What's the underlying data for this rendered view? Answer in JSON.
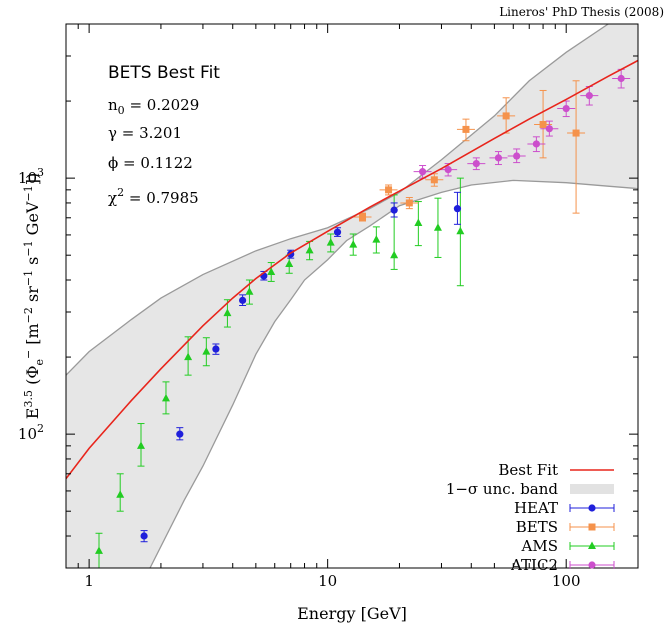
{
  "credit": "Lineros' PhD Thesis (2008)",
  "chart_data": {
    "type": "scatter",
    "xscale": "log",
    "yscale": "log",
    "xlim": [
      0.8,
      200
    ],
    "ylim": [
      30,
      4000
    ],
    "xlabel": "Energy [GeV]",
    "ylabel": {
      "base": "E",
      "exp": "3.5",
      "phi_open": " (Φ",
      "phi_sub": "e",
      "phi_sup": "−",
      "bracket": " [m",
      "u1": "−2",
      "sr": " sr",
      "u2": "−1",
      "s": " s",
      "u3": "−1",
      "gev": " GeV",
      "u4": "−1",
      "close": "])"
    },
    "x_tick_labels": [
      {
        "value": 1,
        "label": "1"
      },
      {
        "value": 10,
        "label": "10"
      },
      {
        "value": 100,
        "label": "100"
      }
    ],
    "y_tick_labels": [
      {
        "value": 100,
        "label": "10",
        "exp": "2"
      },
      {
        "value": 1000,
        "label": "10",
        "exp": "3"
      }
    ],
    "grid": false,
    "legend_position": "bottom-right",
    "annotation": {
      "title": "BETS Best Fit",
      "n0_name": "n",
      "n0_sub": "0",
      "n0_value": " = 0.2029",
      "gamma": "γ = 3.201",
      "phi": "ϕ = 0.1122",
      "chi_name": "χ",
      "chi_sup": "2",
      "chi_value": " = 0.7985"
    },
    "fit": {
      "name": "Best Fit",
      "color": "#e8251c",
      "points": [
        [
          0.8,
          67
        ],
        [
          1,
          88
        ],
        [
          1.5,
          135
        ],
        [
          2,
          180
        ],
        [
          3,
          265
        ],
        [
          4,
          340
        ],
        [
          5,
          405
        ],
        [
          7,
          510
        ],
        [
          10,
          620
        ],
        [
          15,
          770
        ],
        [
          20,
          890
        ],
        [
          30,
          1090
        ],
        [
          50,
          1430
        ],
        [
          70,
          1700
        ],
        [
          100,
          2030
        ],
        [
          150,
          2500
        ],
        [
          200,
          2880
        ]
      ]
    },
    "band": {
      "name": "1−σ unc. band",
      "color": "#e6e6e6",
      "upper": [
        [
          0.8,
          170
        ],
        [
          1,
          210
        ],
        [
          1.5,
          280
        ],
        [
          2,
          340
        ],
        [
          3,
          420
        ],
        [
          5,
          520
        ],
        [
          7,
          580
        ],
        [
          10,
          640
        ],
        [
          15,
          760
        ],
        [
          20,
          880
        ],
        [
          30,
          1180
        ],
        [
          50,
          1750
        ],
        [
          70,
          2400
        ],
        [
          100,
          3100
        ],
        [
          150,
          4000
        ]
      ],
      "lower": [
        [
          1.8,
          30
        ],
        [
          2.5,
          55
        ],
        [
          3,
          75
        ],
        [
          4,
          130
        ],
        [
          5,
          205
        ],
        [
          6,
          275
        ],
        [
          7,
          335
        ],
        [
          8,
          400
        ],
        [
          10,
          480
        ],
        [
          12,
          570
        ],
        [
          15,
          650
        ],
        [
          20,
          780
        ],
        [
          30,
          880
        ],
        [
          40,
          940
        ],
        [
          60,
          980
        ],
        [
          100,
          960
        ],
        [
          150,
          930
        ],
        [
          200,
          910
        ]
      ]
    },
    "series": [
      {
        "name": "HEAT",
        "color": "#1f1fdb",
        "marker": "circle",
        "points": [
          {
            "x": 1.7,
            "y": 40,
            "lo": 38,
            "hi": 42
          },
          {
            "x": 2.4,
            "y": 100,
            "lo": 95,
            "hi": 106
          },
          {
            "x": 3.4,
            "y": 215,
            "lo": 205,
            "hi": 225
          },
          {
            "x": 4.4,
            "y": 333,
            "lo": 318,
            "hi": 350
          },
          {
            "x": 5.4,
            "y": 415,
            "lo": 400,
            "hi": 432
          },
          {
            "x": 7.0,
            "y": 505,
            "lo": 487,
            "hi": 523
          },
          {
            "x": 11,
            "y": 615,
            "lo": 592,
            "hi": 640
          },
          {
            "x": 19,
            "y": 750,
            "lo": 705,
            "hi": 800
          },
          {
            "x": 35,
            "y": 760,
            "lo": 660,
            "hi": 880
          }
        ]
      },
      {
        "name": "BETS",
        "color": "#f5924b",
        "marker": "square",
        "points": [
          {
            "x": 14,
            "y": 705,
            "lo": 680,
            "hi": 730
          },
          {
            "x": 18,
            "y": 900,
            "lo": 860,
            "hi": 940
          },
          {
            "x": 22,
            "y": 800,
            "lo": 760,
            "hi": 840
          },
          {
            "x": 28,
            "y": 985,
            "lo": 930,
            "hi": 1040
          },
          {
            "x": 38,
            "y": 1550,
            "lo": 1400,
            "hi": 1700
          },
          {
            "x": 56,
            "y": 1750,
            "lo": 1500,
            "hi": 2060
          },
          {
            "x": 80,
            "y": 1620,
            "lo": 1200,
            "hi": 2200
          },
          {
            "x": 110,
            "y": 1500,
            "lo": 730,
            "hi": 2400
          }
        ]
      },
      {
        "name": "AMS",
        "color": "#22cc22",
        "marker": "triangle",
        "points": [
          {
            "x": 1.1,
            "y": 35,
            "lo": 30,
            "hi": 41
          },
          {
            "x": 1.35,
            "y": 58,
            "lo": 50,
            "hi": 70
          },
          {
            "x": 1.65,
            "y": 90,
            "lo": 75,
            "hi": 110
          },
          {
            "x": 2.1,
            "y": 138,
            "lo": 120,
            "hi": 160
          },
          {
            "x": 2.6,
            "y": 200,
            "lo": 170,
            "hi": 240
          },
          {
            "x": 3.1,
            "y": 210,
            "lo": 185,
            "hi": 238
          },
          {
            "x": 3.8,
            "y": 297,
            "lo": 262,
            "hi": 335
          },
          {
            "x": 4.7,
            "y": 360,
            "lo": 322,
            "hi": 400
          },
          {
            "x": 5.8,
            "y": 430,
            "lo": 395,
            "hi": 468
          },
          {
            "x": 6.9,
            "y": 462,
            "lo": 425,
            "hi": 500
          },
          {
            "x": 8.4,
            "y": 522,
            "lo": 480,
            "hi": 566
          },
          {
            "x": 10.3,
            "y": 560,
            "lo": 515,
            "hi": 605
          },
          {
            "x": 12.8,
            "y": 550,
            "lo": 500,
            "hi": 605
          },
          {
            "x": 16,
            "y": 575,
            "lo": 510,
            "hi": 645
          },
          {
            "x": 19,
            "y": 500,
            "lo": 440,
            "hi": 860
          },
          {
            "x": 24,
            "y": 668,
            "lo": 545,
            "hi": 810
          },
          {
            "x": 29,
            "y": 640,
            "lo": 490,
            "hi": 835
          },
          {
            "x": 36,
            "y": 620,
            "lo": 380,
            "hi": 1000
          }
        ]
      },
      {
        "name": "ATIC2",
        "color": "#cc4fcc",
        "marker": "circle",
        "points": [
          {
            "x": 25,
            "y": 1060,
            "lo": 1000,
            "hi": 1120
          },
          {
            "x": 32,
            "y": 1080,
            "lo": 1020,
            "hi": 1140
          },
          {
            "x": 42,
            "y": 1140,
            "lo": 1080,
            "hi": 1200
          },
          {
            "x": 52,
            "y": 1200,
            "lo": 1130,
            "hi": 1270
          },
          {
            "x": 62,
            "y": 1220,
            "lo": 1150,
            "hi": 1300
          },
          {
            "x": 75,
            "y": 1360,
            "lo": 1270,
            "hi": 1450
          },
          {
            "x": 85,
            "y": 1560,
            "lo": 1460,
            "hi": 1670
          },
          {
            "x": 100,
            "y": 1870,
            "lo": 1740,
            "hi": 2000
          },
          {
            "x": 125,
            "y": 2100,
            "lo": 1930,
            "hi": 2280
          },
          {
            "x": 170,
            "y": 2450,
            "lo": 2250,
            "hi": 2660
          }
        ]
      }
    ]
  }
}
